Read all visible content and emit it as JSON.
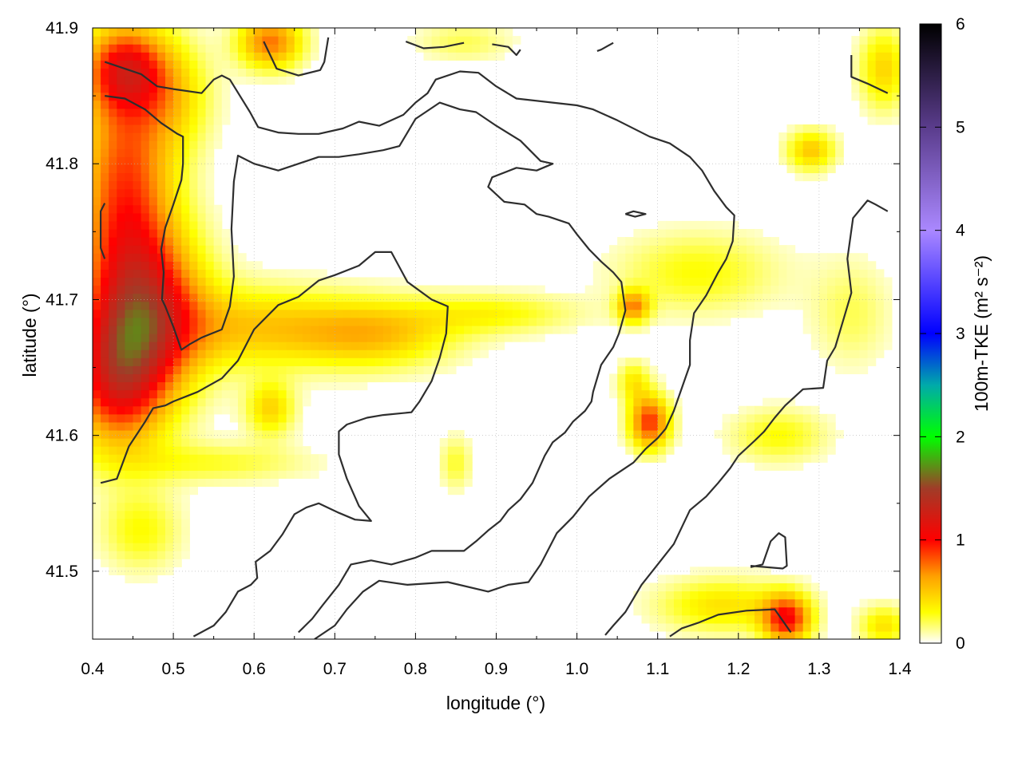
{
  "chart_data": {
    "type": "heatmap",
    "title": "",
    "xlabel": "longitude (°)",
    "ylabel": "latitude (°)",
    "xlim": [
      0.4,
      1.4
    ],
    "ylim": [
      41.45,
      41.9
    ],
    "xticks": [
      0.4,
      0.5,
      0.6,
      0.7,
      0.8,
      0.9,
      1.0,
      1.1,
      1.2,
      1.3,
      1.4
    ],
    "yticks": [
      41.5,
      41.6,
      41.7,
      41.8,
      41.9
    ],
    "grid": true,
    "colorbar": {
      "label": "100m-TKE (m² s⁻²)",
      "min": 0,
      "max": 6,
      "ticks": [
        0,
        1,
        2,
        3,
        4,
        5,
        6
      ],
      "colors": [
        {
          "v": 0.0,
          "c": "#ffffff"
        },
        {
          "v": 0.3,
          "c": "#ffff00"
        },
        {
          "v": 0.65,
          "c": "#ffa000"
        },
        {
          "v": 1.0,
          "c": "#ff0000"
        },
        {
          "v": 1.5,
          "c": "#a03c28"
        },
        {
          "v": 2.0,
          "c": "#00ff00"
        },
        {
          "v": 2.5,
          "c": "#00aaaa"
        },
        {
          "v": 3.0,
          "c": "#0000ff"
        },
        {
          "v": 4.0,
          "c": "#aa88ff"
        },
        {
          "v": 5.0,
          "c": "#5a3c8c"
        },
        {
          "v": 6.0,
          "c": "#000000"
        }
      ]
    },
    "hotspots": [
      {
        "lon": 0.47,
        "lat": 41.69,
        "rx": 0.07,
        "ry": 0.06,
        "value": 0.95
      },
      {
        "lon": 0.44,
        "lat": 41.78,
        "rx": 0.06,
        "ry": 0.1,
        "value": 0.85
      },
      {
        "lon": 0.43,
        "lat": 41.64,
        "rx": 0.06,
        "ry": 0.05,
        "value": 0.9
      },
      {
        "lon": 0.44,
        "lat": 41.87,
        "rx": 0.05,
        "ry": 0.03,
        "value": 0.8
      },
      {
        "lon": 0.62,
        "lat": 41.89,
        "rx": 0.04,
        "ry": 0.02,
        "value": 0.75
      },
      {
        "lon": 0.6,
        "lat": 41.68,
        "rx": 0.12,
        "ry": 0.03,
        "value": 0.45
      },
      {
        "lon": 0.75,
        "lat": 41.675,
        "rx": 0.1,
        "ry": 0.025,
        "value": 0.5
      },
      {
        "lon": 0.9,
        "lat": 41.69,
        "rx": 0.1,
        "ry": 0.015,
        "value": 0.3
      },
      {
        "lon": 1.07,
        "lat": 41.695,
        "rx": 0.02,
        "ry": 0.012,
        "value": 0.65
      },
      {
        "lon": 1.09,
        "lat": 41.61,
        "rx": 0.025,
        "ry": 0.02,
        "value": 0.9
      },
      {
        "lon": 0.62,
        "lat": 41.62,
        "rx": 0.03,
        "ry": 0.02,
        "value": 0.45
      },
      {
        "lon": 1.29,
        "lat": 41.81,
        "rx": 0.03,
        "ry": 0.015,
        "value": 0.5
      },
      {
        "lon": 1.38,
        "lat": 41.87,
        "rx": 0.03,
        "ry": 0.03,
        "value": 0.45
      },
      {
        "lon": 1.26,
        "lat": 41.465,
        "rx": 0.03,
        "ry": 0.018,
        "value": 0.95
      },
      {
        "lon": 1.18,
        "lat": 41.475,
        "rx": 0.08,
        "ry": 0.02,
        "value": 0.4
      },
      {
        "lon": 1.38,
        "lat": 41.46,
        "rx": 0.03,
        "ry": 0.015,
        "value": 0.4
      },
      {
        "lon": 0.55,
        "lat": 41.58,
        "rx": 0.12,
        "ry": 0.015,
        "value": 0.25
      },
      {
        "lon": 1.25,
        "lat": 41.6,
        "rx": 0.06,
        "ry": 0.02,
        "value": 0.3
      },
      {
        "lon": 1.15,
        "lat": 41.72,
        "rx": 0.1,
        "ry": 0.03,
        "value": 0.3
      },
      {
        "lon": 0.46,
        "lat": 41.53,
        "rx": 0.05,
        "ry": 0.03,
        "value": 0.3
      },
      {
        "lon": 0.86,
        "lat": 41.89,
        "rx": 0.06,
        "ry": 0.015,
        "value": 0.2
      },
      {
        "lon": 1.07,
        "lat": 41.64,
        "rx": 0.02,
        "ry": 0.015,
        "value": 0.35
      },
      {
        "lon": 1.34,
        "lat": 41.69,
        "rx": 0.05,
        "ry": 0.04,
        "value": 0.2
      },
      {
        "lon": 0.5,
        "lat": 41.85,
        "rx": 0.05,
        "ry": 0.04,
        "value": 0.35
      },
      {
        "lon": 0.85,
        "lat": 41.58,
        "rx": 0.02,
        "ry": 0.02,
        "value": 0.25
      }
    ],
    "contours": [
      [
        [
          0.415,
          41.875
        ],
        [
          0.46,
          41.866
        ],
        [
          0.48,
          41.857
        ],
        [
          0.5,
          41.855
        ],
        [
          0.535,
          41.852
        ],
        [
          0.55,
          41.862
        ],
        [
          0.56,
          41.865
        ],
        [
          0.57,
          41.862
        ],
        [
          0.595,
          41.838
        ],
        [
          0.605,
          41.827
        ],
        [
          0.63,
          41.823
        ],
        [
          0.655,
          41.822
        ],
        [
          0.68,
          41.822
        ],
        [
          0.71,
          41.826
        ],
        [
          0.73,
          41.831
        ],
        [
          0.755,
          41.828
        ],
        [
          0.785,
          41.836
        ],
        [
          0.8,
          41.845
        ],
        [
          0.815,
          41.852
        ],
        [
          0.825,
          41.862
        ],
        [
          0.855,
          41.868
        ],
        [
          0.878,
          41.867
        ],
        [
          0.9,
          41.857
        ],
        [
          0.925,
          41.848
        ],
        [
          0.97,
          41.845
        ],
        [
          1.0,
          41.843
        ],
        [
          1.02,
          41.84
        ],
        [
          1.05,
          41.832
        ],
        [
          1.09,
          41.82
        ],
        [
          1.115,
          41.815
        ],
        [
          1.14,
          41.805
        ],
        [
          1.155,
          41.795
        ],
        [
          1.17,
          41.78
        ],
        [
          1.185,
          41.768
        ],
        [
          1.195,
          41.762
        ],
        [
          1.193,
          41.743
        ],
        [
          1.185,
          41.73
        ],
        [
          1.175,
          41.72
        ],
        [
          1.16,
          41.703
        ],
        [
          1.145,
          41.69
        ],
        [
          1.14,
          41.67
        ],
        [
          1.14,
          41.652
        ],
        [
          1.13,
          41.635
        ],
        [
          1.12,
          41.618
        ],
        [
          1.11,
          41.605
        ],
        [
          1.1,
          41.598
        ],
        [
          1.085,
          41.59
        ],
        [
          1.07,
          41.58
        ],
        [
          1.04,
          41.568
        ],
        [
          1.015,
          41.555
        ],
        [
          0.995,
          41.54
        ],
        [
          0.975,
          41.528
        ],
        [
          0.955,
          41.505
        ],
        [
          0.94,
          41.492
        ],
        [
          0.915,
          41.49
        ],
        [
          0.89,
          41.485
        ],
        [
          0.84,
          41.492
        ],
        [
          0.79,
          41.49
        ],
        [
          0.755,
          41.493
        ],
        [
          0.735,
          41.485
        ],
        [
          0.715,
          41.472
        ],
        [
          0.7,
          41.46
        ],
        [
          0.675,
          41.45
        ]
      ],
      [
        [
          0.415,
          41.85
        ],
        [
          0.44,
          41.848
        ],
        [
          0.465,
          41.84
        ],
        [
          0.485,
          41.83
        ],
        [
          0.505,
          41.822
        ],
        [
          0.512,
          41.82
        ],
        [
          0.512,
          41.8
        ],
        [
          0.51,
          41.788
        ],
        [
          0.5,
          41.77
        ],
        [
          0.49,
          41.753
        ],
        [
          0.485,
          41.737
        ],
        [
          0.488,
          41.72
        ],
        [
          0.486,
          41.7
        ],
        [
          0.49,
          41.695
        ],
        [
          0.5,
          41.68
        ],
        [
          0.51,
          41.663
        ],
        [
          0.52,
          41.667
        ],
        [
          0.535,
          41.672
        ],
        [
          0.56,
          41.678
        ],
        [
          0.57,
          41.695
        ],
        [
          0.575,
          41.717
        ],
        [
          0.572,
          41.752
        ],
        [
          0.575,
          41.787
        ],
        [
          0.58,
          41.806
        ],
        [
          0.6,
          41.8
        ],
        [
          0.63,
          41.795
        ],
        [
          0.68,
          41.805
        ],
        [
          0.705,
          41.805
        ],
        [
          0.73,
          41.807
        ],
        [
          0.76,
          41.81
        ],
        [
          0.78,
          41.813
        ],
        [
          0.8,
          41.833
        ],
        [
          0.83,
          41.845
        ],
        [
          0.855,
          41.84
        ],
        [
          0.875,
          41.838
        ],
        [
          0.9,
          41.828
        ],
        [
          0.93,
          41.817
        ],
        [
          0.955,
          41.802
        ],
        [
          0.97,
          41.8
        ],
        [
          0.95,
          41.795
        ],
        [
          0.925,
          41.797
        ],
        [
          0.895,
          41.79
        ],
        [
          0.89,
          41.783
        ],
        [
          0.91,
          41.772
        ],
        [
          0.935,
          41.77
        ],
        [
          0.95,
          41.763
        ],
        [
          0.965,
          41.761
        ],
        [
          0.99,
          41.756
        ],
        [
          1.0,
          41.748
        ],
        [
          1.015,
          41.737
        ],
        [
          1.03,
          41.728
        ],
        [
          1.045,
          41.72
        ],
        [
          1.055,
          41.713
        ],
        [
          1.06,
          41.692
        ],
        [
          1.052,
          41.675
        ],
        [
          1.045,
          41.665
        ],
        [
          1.03,
          41.652
        ],
        [
          1.02,
          41.632
        ],
        [
          1.018,
          41.625
        ],
        [
          1.01,
          41.618
        ],
        [
          0.995,
          41.61
        ],
        [
          0.985,
          41.602
        ],
        [
          0.97,
          41.595
        ],
        [
          0.96,
          41.585
        ],
        [
          0.945,
          41.565
        ],
        [
          0.93,
          41.553
        ],
        [
          0.915,
          41.545
        ],
        [
          0.905,
          41.537
        ],
        [
          0.89,
          41.53
        ],
        [
          0.875,
          41.522
        ],
        [
          0.86,
          41.515
        ],
        [
          0.82,
          41.515
        ],
        [
          0.8,
          41.51
        ],
        [
          0.77,
          41.505
        ],
        [
          0.745,
          41.508
        ],
        [
          0.72,
          41.505
        ],
        [
          0.705,
          41.49
        ],
        [
          0.685,
          41.475
        ],
        [
          0.672,
          41.465
        ],
        [
          0.655,
          41.455
        ]
      ],
      [
        [
          0.41,
          41.565
        ],
        [
          0.43,
          41.568
        ],
        [
          0.445,
          41.592
        ],
        [
          0.465,
          41.61
        ],
        [
          0.475,
          41.62
        ],
        [
          0.49,
          41.622
        ],
        [
          0.5,
          41.625
        ],
        [
          0.53,
          41.632
        ],
        [
          0.56,
          41.642
        ],
        [
          0.58,
          41.655
        ],
        [
          0.6,
          41.678
        ],
        [
          0.63,
          41.696
        ],
        [
          0.655,
          41.702
        ],
        [
          0.68,
          41.714
        ],
        [
          0.7,
          41.718
        ],
        [
          0.73,
          41.725
        ],
        [
          0.75,
          41.735
        ],
        [
          0.77,
          41.735
        ],
        [
          0.79,
          41.713
        ],
        [
          0.82,
          41.7
        ],
        [
          0.84,
          41.695
        ],
        [
          0.838,
          41.675
        ],
        [
          0.83,
          41.657
        ],
        [
          0.82,
          41.64
        ],
        [
          0.805,
          41.625
        ],
        [
          0.795,
          41.617
        ],
        [
          0.76,
          41.615
        ],
        [
          0.74,
          41.613
        ],
        [
          0.715,
          41.608
        ],
        [
          0.705,
          41.603
        ],
        [
          0.705,
          41.586
        ],
        [
          0.715,
          41.568
        ],
        [
          0.73,
          41.548
        ],
        [
          0.745,
          41.537
        ],
        [
          0.725,
          41.538
        ],
        [
          0.705,
          41.543
        ],
        [
          0.68,
          41.55
        ],
        [
          0.665,
          41.547
        ],
        [
          0.65,
          41.542
        ],
        [
          0.635,
          41.527
        ],
        [
          0.62,
          41.515
        ],
        [
          0.602,
          41.507
        ],
        [
          0.604,
          41.495
        ],
        [
          0.596,
          41.49
        ],
        [
          0.58,
          41.485
        ],
        [
          0.565,
          41.47
        ],
        [
          0.55,
          41.46
        ],
        [
          0.525,
          41.452
        ]
      ],
      [
        [
          1.385,
          41.765
        ],
        [
          1.37,
          41.77
        ],
        [
          1.36,
          41.773
        ],
        [
          1.342,
          41.76
        ],
        [
          1.335,
          41.73
        ],
        [
          1.34,
          41.705
        ],
        [
          1.33,
          41.685
        ],
        [
          1.32,
          41.665
        ],
        [
          1.31,
          41.655
        ],
        [
          1.305,
          41.635
        ],
        [
          1.28,
          41.634
        ],
        [
          1.258,
          41.622
        ],
        [
          1.245,
          41.613
        ],
        [
          1.232,
          41.603
        ],
        [
          1.22,
          41.596
        ],
        [
          1.2,
          41.585
        ],
        [
          1.19,
          41.576
        ],
        [
          1.175,
          41.565
        ],
        [
          1.16,
          41.555
        ],
        [
          1.14,
          41.545
        ],
        [
          1.12,
          41.52
        ],
        [
          1.1,
          41.505
        ],
        [
          1.08,
          41.49
        ],
        [
          1.06,
          41.47
        ],
        [
          1.045,
          41.46
        ],
        [
          1.035,
          41.453
        ]
      ],
      [
        [
          1.115,
          41.452
        ],
        [
          1.13,
          41.458
        ],
        [
          1.15,
          41.462
        ],
        [
          1.175,
          41.468
        ],
        [
          1.21,
          41.471
        ],
        [
          1.245,
          41.472
        ],
        [
          1.265,
          41.455
        ]
      ],
      [
        [
          1.215,
          41.504
        ],
        [
          1.255,
          41.502
        ],
        [
          1.26,
          41.504
        ],
        [
          1.258,
          41.525
        ],
        [
          1.25,
          41.528
        ],
        [
          1.24,
          41.522
        ],
        [
          1.23,
          41.505
        ],
        [
          1.215,
          41.503
        ]
      ],
      [
        [
          1.06,
          41.763
        ],
        [
          1.07,
          41.765
        ],
        [
          1.085,
          41.763
        ],
        [
          1.072,
          41.761
        ],
        [
          1.06,
          41.763
        ]
      ],
      [
        [
          0.415,
          41.73
        ],
        [
          0.41,
          41.738
        ],
        [
          0.41,
          41.765
        ],
        [
          0.415,
          41.771
        ]
      ],
      [
        [
          0.612,
          41.89
        ],
        [
          0.62,
          41.88
        ],
        [
          0.628,
          41.87
        ],
        [
          0.655,
          41.865
        ],
        [
          0.682,
          41.869
        ],
        [
          0.687,
          41.875
        ],
        [
          0.692,
          41.893
        ]
      ],
      [
        [
          0.788,
          41.89
        ],
        [
          0.81,
          41.885
        ],
        [
          0.835,
          41.886
        ],
        [
          0.86,
          41.889
        ]
      ],
      [
        [
          0.895,
          41.888
        ],
        [
          0.915,
          41.886
        ],
        [
          0.925,
          41.88
        ],
        [
          0.93,
          41.884
        ]
      ],
      [
        [
          1.025,
          41.883
        ],
        [
          1.03,
          41.884
        ],
        [
          1.045,
          41.889
        ]
      ],
      [
        [
          1.34,
          41.88
        ],
        [
          1.34,
          41.864
        ],
        [
          1.36,
          41.859
        ],
        [
          1.385,
          41.852
        ]
      ]
    ]
  }
}
